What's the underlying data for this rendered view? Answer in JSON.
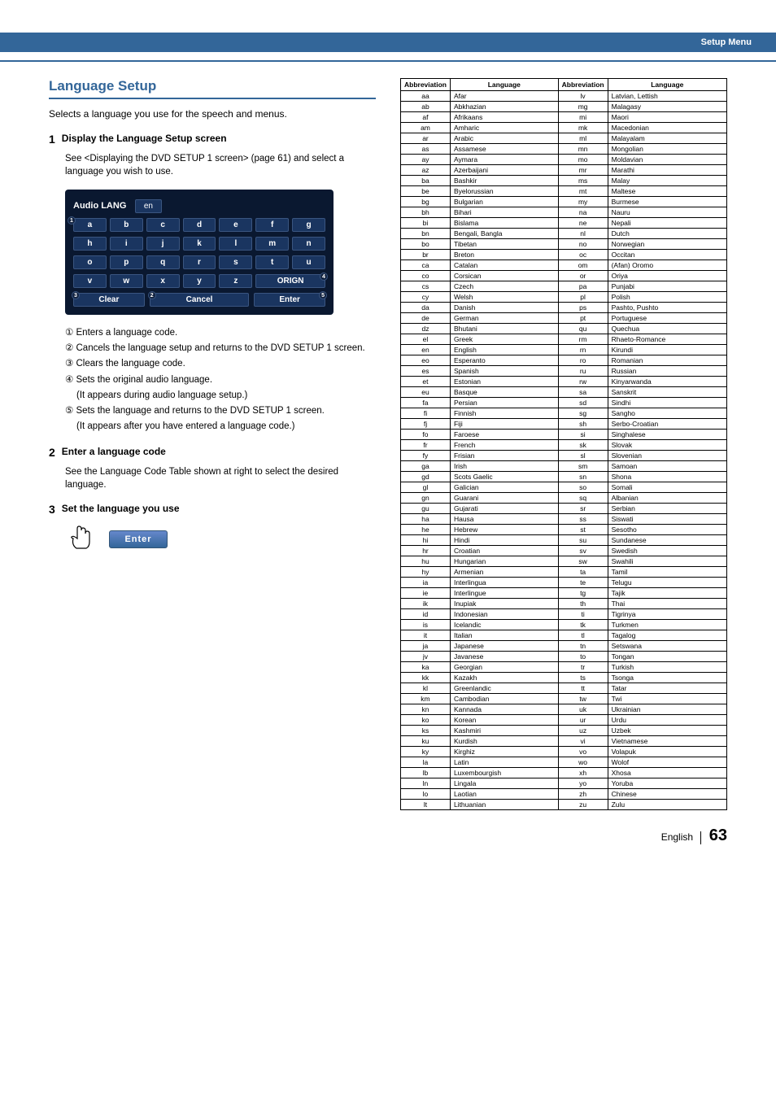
{
  "header": {
    "category": "Setup Menu"
  },
  "title": "Language Setup",
  "intro": "Selects a language you use for the speech and menus.",
  "steps": {
    "s1": {
      "num": "1",
      "title": "Display the Language Setup screen",
      "desc": "See <Displaying the DVD SETUP 1 screen> (page 61) and select a language you wish to use."
    },
    "s2": {
      "num": "2",
      "title": "Enter a language code",
      "desc": "See the Language Code Table shown at right to select the desired language."
    },
    "s3": {
      "num": "3",
      "title": "Set the language you use"
    }
  },
  "osd": {
    "title": "Audio  LANG",
    "field": "en",
    "row1": [
      "a",
      "b",
      "c",
      "d",
      "e",
      "f",
      "g"
    ],
    "row2": [
      "h",
      "i",
      "j",
      "k",
      "l",
      "m",
      "n"
    ],
    "row3": [
      "o",
      "p",
      "q",
      "r",
      "s",
      "t",
      "u"
    ],
    "row4": [
      "v",
      "w",
      "x",
      "y",
      "z"
    ],
    "orign": "ORIGN",
    "clear": "Clear",
    "cancel": "Cancel",
    "enter": "Enter",
    "b1": "1",
    "b2": "2",
    "b3": "3",
    "b4": "4",
    "b5": "5"
  },
  "notes": {
    "n1": "① Enters a language code.",
    "n2": "② Cancels the language setup and returns to the DVD SETUP 1 screen.",
    "n3": "③ Clears the language code.",
    "n4a": "④ Sets the original audio language.",
    "n4b": "(It appears during audio language setup.)",
    "n5a": "⑤ Sets the language and returns to the DVD SETUP 1 screen.",
    "n5b": "(It appears after you have entered a language code.)"
  },
  "enterButton": "Enter",
  "tableHeaders": {
    "ab": "Abbreviation",
    "lg": "Language"
  },
  "langs": [
    [
      "aa",
      "Afar",
      "lv",
      "Latvian, Lettish"
    ],
    [
      "ab",
      "Abkhazian",
      "mg",
      "Malagasy"
    ],
    [
      "af",
      "Afrikaans",
      "mi",
      "Maori"
    ],
    [
      "am",
      "Amharic",
      "mk",
      "Macedonian"
    ],
    [
      "ar",
      "Arabic",
      "ml",
      "Malayalam"
    ],
    [
      "as",
      "Assamese",
      "mn",
      "Mongolian"
    ],
    [
      "ay",
      "Aymara",
      "mo",
      "Moldavian"
    ],
    [
      "az",
      "Azerbaijani",
      "mr",
      "Marathi"
    ],
    [
      "ba",
      "Bashkir",
      "ms",
      "Malay"
    ],
    [
      "be",
      "Byelorussian",
      "mt",
      "Maltese"
    ],
    [
      "bg",
      "Bulgarian",
      "my",
      "Burmese"
    ],
    [
      "bh",
      "Bihari",
      "na",
      "Nauru"
    ],
    [
      "bi",
      "Bislama",
      "ne",
      "Nepali"
    ],
    [
      "bn",
      "Bengali, Bangla",
      "nl",
      "Dutch"
    ],
    [
      "bo",
      "Tibetan",
      "no",
      "Norwegian"
    ],
    [
      "br",
      "Breton",
      "oc",
      "Occitan"
    ],
    [
      "ca",
      "Catalan",
      "om",
      "(Afan) Oromo"
    ],
    [
      "co",
      "Corsican",
      "or",
      "Oriya"
    ],
    [
      "cs",
      "Czech",
      "pa",
      "Punjabi"
    ],
    [
      "cy",
      "Welsh",
      "pl",
      "Polish"
    ],
    [
      "da",
      "Danish",
      "ps",
      "Pashto, Pushto"
    ],
    [
      "de",
      "German",
      "pt",
      "Portuguese"
    ],
    [
      "dz",
      "Bhutani",
      "qu",
      "Quechua"
    ],
    [
      "el",
      "Greek",
      "rm",
      "Rhaeto-Romance"
    ],
    [
      "en",
      "English",
      "rn",
      "Kirundi"
    ],
    [
      "eo",
      "Esperanto",
      "ro",
      "Romanian"
    ],
    [
      "es",
      "Spanish",
      "ru",
      "Russian"
    ],
    [
      "et",
      "Estonian",
      "rw",
      "Kinyarwanda"
    ],
    [
      "eu",
      "Basque",
      "sa",
      "Sanskrit"
    ],
    [
      "fa",
      "Persian",
      "sd",
      "Sindhi"
    ],
    [
      "fi",
      "Finnish",
      "sg",
      "Sangho"
    ],
    [
      "fj",
      "Fiji",
      "sh",
      "Serbo-Croatian"
    ],
    [
      "fo",
      "Faroese",
      "si",
      "Singhalese"
    ],
    [
      "fr",
      "French",
      "sk",
      "Slovak"
    ],
    [
      "fy",
      "Frisian",
      "sl",
      "Slovenian"
    ],
    [
      "ga",
      "Irish",
      "sm",
      "Samoan"
    ],
    [
      "gd",
      "Scots Gaelic",
      "sn",
      "Shona"
    ],
    [
      "gl",
      "Galician",
      "so",
      "Somali"
    ],
    [
      "gn",
      "Guarani",
      "sq",
      "Albanian"
    ],
    [
      "gu",
      "Gujarati",
      "sr",
      "Serbian"
    ],
    [
      "ha",
      "Hausa",
      "ss",
      "Siswati"
    ],
    [
      "he",
      "Hebrew",
      "st",
      "Sesotho"
    ],
    [
      "hi",
      "Hindi",
      "su",
      "Sundanese"
    ],
    [
      "hr",
      "Croatian",
      "sv",
      "Swedish"
    ],
    [
      "hu",
      "Hungarian",
      "sw",
      "Swahili"
    ],
    [
      "hy",
      "Armenian",
      "ta",
      "Tamil"
    ],
    [
      "ia",
      "Interlingua",
      "te",
      "Telugu"
    ],
    [
      "ie",
      "Interlingue",
      "tg",
      "Tajik"
    ],
    [
      "ik",
      "Inupiak",
      "th",
      "Thai"
    ],
    [
      "id",
      "Indonesian",
      "ti",
      "Tigrinya"
    ],
    [
      "is",
      "Icelandic",
      "tk",
      "Turkmen"
    ],
    [
      "it",
      "Italian",
      "tl",
      "Tagalog"
    ],
    [
      "ja",
      "Japanese",
      "tn",
      "Setswana"
    ],
    [
      "jv",
      "Javanese",
      "to",
      "Tongan"
    ],
    [
      "ka",
      "Georgian",
      "tr",
      "Turkish"
    ],
    [
      "kk",
      "Kazakh",
      "ts",
      "Tsonga"
    ],
    [
      "kl",
      "Greenlandic",
      "tt",
      "Tatar"
    ],
    [
      "km",
      "Cambodian",
      "tw",
      "Twi"
    ],
    [
      "kn",
      "Kannada",
      "uk",
      "Ukrainian"
    ],
    [
      "ko",
      "Korean",
      "ur",
      "Urdu"
    ],
    [
      "ks",
      "Kashmiri",
      "uz",
      "Uzbek"
    ],
    [
      "ku",
      "Kurdish",
      "vi",
      "Vietnamese"
    ],
    [
      "ky",
      "Kirghiz",
      "vo",
      "Volapuk"
    ],
    [
      "la",
      "Latin",
      "wo",
      "Wolof"
    ],
    [
      "lb",
      "Luxembourgish",
      "xh",
      "Xhosa"
    ],
    [
      "ln",
      "Lingala",
      "yo",
      "Yoruba"
    ],
    [
      "lo",
      "Laotian",
      "zh",
      "Chinese"
    ],
    [
      "lt",
      "Lithuanian",
      "zu",
      "Zulu"
    ]
  ],
  "footer": {
    "lang": "English",
    "page": "63"
  }
}
